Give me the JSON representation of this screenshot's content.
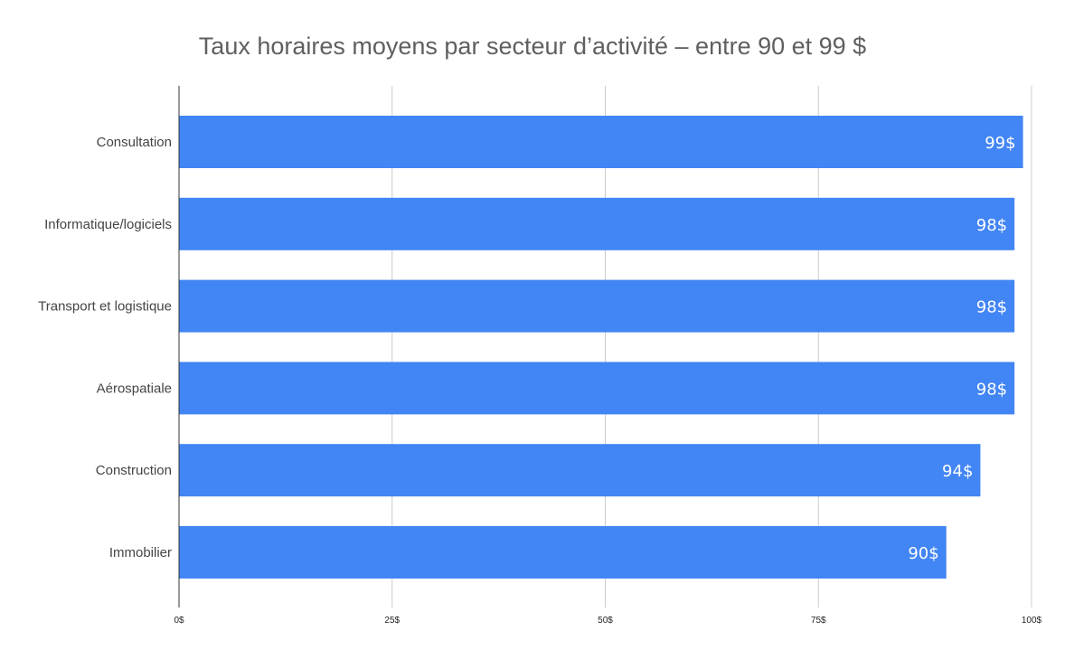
{
  "chart_data": {
    "type": "bar",
    "orientation": "horizontal",
    "title": "Taux horaires moyens par secteur d’activité – entre 90 et 99 $",
    "xlabel": "",
    "ylabel": "",
    "categories": [
      "Consultation",
      "Informatique/logiciels",
      "Transport et logistique",
      "Aérospatiale",
      "Construction",
      "Immobilier"
    ],
    "values": [
      99,
      98,
      98,
      98,
      94,
      90
    ],
    "data_labels": [
      "99$",
      "98$",
      "98$",
      "98$",
      "94$",
      "90$"
    ],
    "xlim": [
      0,
      100
    ],
    "x_ticks": [
      0,
      25,
      50,
      75,
      100
    ],
    "x_tick_labels": [
      "0$",
      "25$",
      "50$",
      "75$",
      "100$"
    ],
    "grid": true,
    "legend": "none",
    "colors": {
      "bar": "#4285f4",
      "grid": "#cccccc",
      "axis": "#333333"
    }
  }
}
